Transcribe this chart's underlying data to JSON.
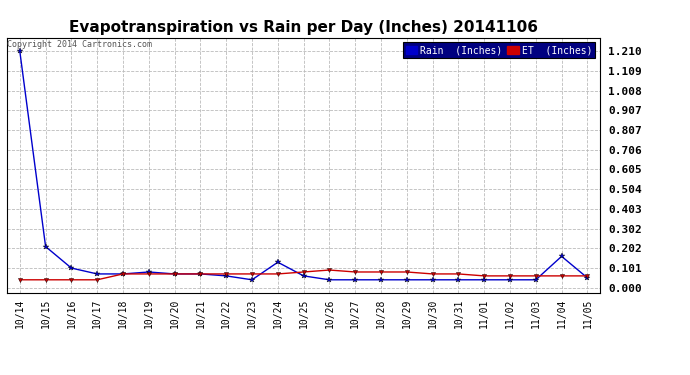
{
  "title": "Evapotranspiration vs Rain per Day (Inches) 20141106",
  "copyright": "Copyright 2014 Cartronics.com",
  "x_labels": [
    "10/14",
    "10/15",
    "10/16",
    "10/17",
    "10/18",
    "10/19",
    "10/20",
    "10/21",
    "10/22",
    "10/23",
    "10/24",
    "10/25",
    "10/26",
    "10/27",
    "10/28",
    "10/29",
    "10/30",
    "10/31",
    "11/01",
    "11/02",
    "11/03",
    "11/04",
    "11/05"
  ],
  "rain_values": [
    1.21,
    0.21,
    0.1,
    0.07,
    0.07,
    0.08,
    0.07,
    0.07,
    0.06,
    0.04,
    0.13,
    0.06,
    0.04,
    0.04,
    0.04,
    0.04,
    0.04,
    0.04,
    0.04,
    0.04,
    0.04,
    0.16,
    0.05
  ],
  "et_values": [
    0.04,
    0.04,
    0.04,
    0.04,
    0.07,
    0.07,
    0.07,
    0.07,
    0.07,
    0.07,
    0.07,
    0.08,
    0.09,
    0.08,
    0.08,
    0.08,
    0.07,
    0.07,
    0.06,
    0.06,
    0.06,
    0.06,
    0.06
  ],
  "rain_color": "#0000cc",
  "et_color": "#cc0000",
  "background_color": "#ffffff",
  "plot_bg_color": "#ffffff",
  "grid_color": "#bbbbbb",
  "yticks": [
    0.0,
    0.101,
    0.202,
    0.302,
    0.403,
    0.504,
    0.605,
    0.706,
    0.807,
    0.907,
    1.008,
    1.109,
    1.21
  ],
  "ylim": [
    -0.025,
    1.28
  ],
  "title_fontsize": 11,
  "tick_fontsize": 7,
  "legend_rain_label": "Rain  (Inches)",
  "legend_et_label": "ET  (Inches)"
}
